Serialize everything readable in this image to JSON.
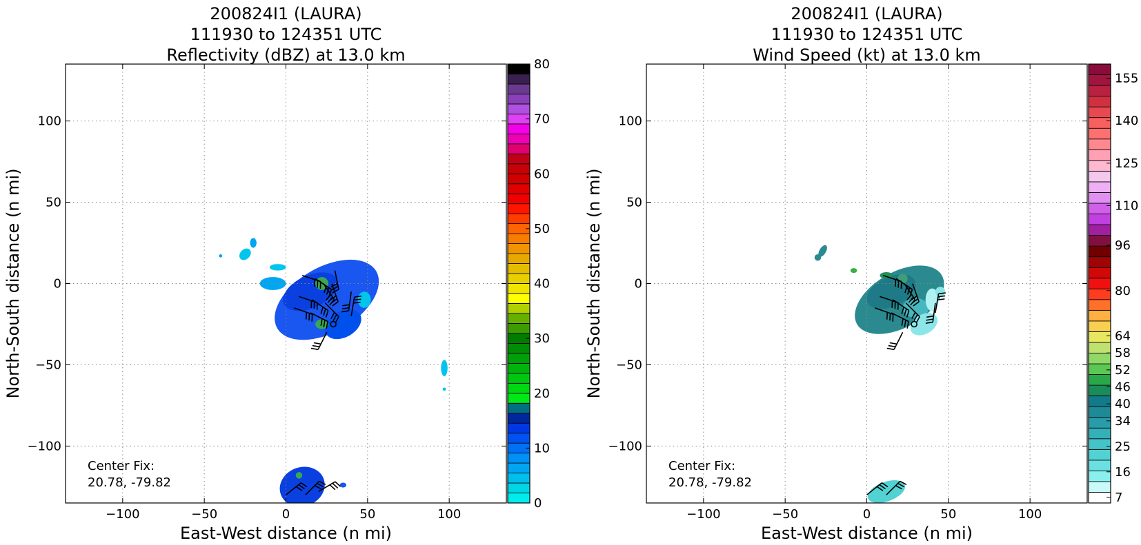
{
  "chart_data": [
    {
      "type": "heatmap",
      "title_lines": [
        "200824I1 (LAURA)",
        "111930 to 124351 UTC",
        "Reflectivity (dBZ) at 13.0 km"
      ],
      "xlabel": "East-West distance (n mi)",
      "ylabel": "North-South distance (n mi)",
      "xlim": [
        -135,
        135
      ],
      "ylim": [
        -135,
        135
      ],
      "xticks": [
        -100,
        -50,
        0,
        50,
        100
      ],
      "yticks": [
        -100,
        -50,
        0,
        50,
        100
      ],
      "xtick_labels": [
        "−100",
        "−50",
        "0",
        "50",
        "100"
      ],
      "ytick_labels": [
        "−100",
        "−50",
        "0",
        "50",
        "100"
      ],
      "grid": true,
      "annotation": [
        "Center Fix:",
        "20.78, -79.82"
      ],
      "colorbar": {
        "min": 0,
        "max": 80,
        "tick_values": [
          0,
          10,
          20,
          30,
          40,
          50,
          60,
          70,
          80
        ],
        "tick_labels": [
          "0",
          "10",
          "20",
          "30",
          "40",
          "50",
          "60",
          "70",
          "80"
        ],
        "colors": [
          "#00ecec",
          "#00d6e6",
          "#00bfee",
          "#00a6f2",
          "#0090f6",
          "#0071f6",
          "#0053f2",
          "#0038e6",
          "#00279e",
          "#007080",
          "#00e818",
          "#00d814",
          "#00c810",
          "#00b40c",
          "#00a008",
          "#008c04",
          "#007c00",
          "#3c9c00",
          "#68b000",
          "#b0d000",
          "#ffff00",
          "#f0e400",
          "#e8d000",
          "#e4bc00",
          "#e8a800",
          "#f09400",
          "#f87c00",
          "#ff6400",
          "#ff3c00",
          "#ff1400",
          "#f00000",
          "#e00000",
          "#d00000",
          "#c80008",
          "#c00018",
          "#e00070",
          "#f000b4",
          "#f400e8",
          "#e040f4",
          "#b050e0",
          "#8a40b8",
          "#6a3a90",
          "#3a2050",
          "#000000"
        ]
      },
      "blobs": [
        {
          "x": 25,
          "y": -10,
          "rx": 35,
          "ry": 20,
          "rot": -30,
          "color": "#1a56f0"
        },
        {
          "x": 15,
          "y": -5,
          "rx": 18,
          "ry": 10,
          "rot": -25,
          "color": "#0a40e0"
        },
        {
          "x": 35,
          "y": -25,
          "rx": 12,
          "ry": 8,
          "rot": -30,
          "color": "#0050ee"
        },
        {
          "x": -8,
          "y": 0,
          "rx": 8,
          "ry": 4,
          "rot": 0,
          "color": "#00a6f2"
        },
        {
          "x": -5,
          "y": 10,
          "rx": 5,
          "ry": 2,
          "rot": 0,
          "color": "#00c6ee"
        },
        {
          "x": 45,
          "y": -5,
          "rx": 5,
          "ry": 10,
          "rot": 0,
          "color": "#1a56f0"
        },
        {
          "x": 48,
          "y": -10,
          "rx": 4,
          "ry": 5,
          "rot": 0,
          "color": "#00c6ee"
        },
        {
          "x": 22,
          "y": 0,
          "rx": 4,
          "ry": 4,
          "rot": 0,
          "color": "#38a850"
        },
        {
          "x": 22,
          "y": -25,
          "rx": 4,
          "ry": 3,
          "rot": 0,
          "color": "#38a850"
        },
        {
          "x": -25,
          "y": 18,
          "rx": 3,
          "ry": 4,
          "rot": 45,
          "color": "#00c6ee"
        },
        {
          "x": -20,
          "y": 25,
          "rx": 2,
          "ry": 3,
          "rot": 0,
          "color": "#00a6f2"
        },
        {
          "x": -40,
          "y": 17,
          "rx": 1,
          "ry": 1,
          "rot": 0,
          "color": "#00a6f2"
        },
        {
          "x": 97,
          "y": -52,
          "rx": 2,
          "ry": 5,
          "rot": 0,
          "color": "#00c6ee"
        },
        {
          "x": 97,
          "y": -65,
          "rx": 1,
          "ry": 1,
          "rot": 0,
          "color": "#00c6ee"
        },
        {
          "x": 10,
          "y": -125,
          "rx": 14,
          "ry": 12,
          "rot": -20,
          "color": "#0a40e0"
        },
        {
          "x": 35,
          "y": -124,
          "rx": 2,
          "ry": 1.5,
          "rot": 0,
          "color": "#1a56f0"
        },
        {
          "x": 8,
          "y": -118,
          "rx": 2,
          "ry": 2,
          "rot": 0,
          "color": "#38a850"
        }
      ],
      "barbs": [
        {
          "x": 10,
          "y": 5,
          "u": 15,
          "v": -5
        },
        {
          "x": 18,
          "y": 3,
          "u": 12,
          "v": -8
        },
        {
          "x": 23,
          "y": 0,
          "u": 8,
          "v": -12
        },
        {
          "x": 28,
          "y": 0,
          "u": 5,
          "v": -14
        },
        {
          "x": 30,
          "y": 8,
          "u": 3,
          "v": -15
        },
        {
          "x": 8,
          "y": -8,
          "u": 15,
          "v": -5
        },
        {
          "x": 16,
          "y": -10,
          "u": 12,
          "v": -8
        },
        {
          "x": 24,
          "y": -12,
          "u": 10,
          "v": -10
        },
        {
          "x": 40,
          "y": -5,
          "u": -2,
          "v": -15
        },
        {
          "x": 40,
          "y": -20,
          "u": 2,
          "v": 12
        },
        {
          "x": 5,
          "y": -15,
          "u": 14,
          "v": -5
        },
        {
          "x": 15,
          "y": -18,
          "u": 12,
          "v": -6
        },
        {
          "x": 25,
          "y": -30,
          "u": -5,
          "v": -10
        },
        {
          "x": 0,
          "y": -130,
          "u": 10,
          "v": 8
        },
        {
          "x": 12,
          "y": -130,
          "u": 8,
          "v": 8
        },
        {
          "x": 20,
          "y": -128,
          "u": 10,
          "v": 6
        }
      ],
      "center": {
        "x": 29,
        "y": -25
      }
    },
    {
      "type": "heatmap",
      "title_lines": [
        "200824I1 (LAURA)",
        "111930 to 124351 UTC",
        "Wind Speed (kt) at 13.0 km"
      ],
      "xlabel": "East-West distance (n mi)",
      "ylabel": "North-South distance (n mi)",
      "xlim": [
        -135,
        135
      ],
      "ylim": [
        -135,
        135
      ],
      "xticks": [
        -100,
        -50,
        0,
        50,
        100
      ],
      "yticks": [
        -100,
        -50,
        0,
        50,
        100
      ],
      "xtick_labels": [
        "−100",
        "−50",
        "0",
        "50",
        "100"
      ],
      "ytick_labels": [
        "−100",
        "−50",
        "0",
        "50",
        "100"
      ],
      "grid": true,
      "annotation": [
        "Center Fix:",
        "20.78, -79.82"
      ],
      "colorbar": {
        "min": 5,
        "max": 160,
        "tick_values": [
          7,
          16,
          25,
          34,
          40,
          46,
          52,
          58,
          64,
          80,
          96,
          110,
          125,
          140,
          155
        ],
        "tick_labels": [
          "7",
          "16",
          "25",
          "34",
          "40",
          "46",
          "52",
          "58",
          "64",
          "80",
          "96",
          "110",
          "125",
          "140",
          "155"
        ],
        "colors": [
          "#ffffff",
          "#c8fafa",
          "#8af0ee",
          "#6ae0e0",
          "#52d2d2",
          "#44c4c8",
          "#34b0b8",
          "#289ca8",
          "#1e8a98",
          "#127a88",
          "#1a8c5a",
          "#28a848",
          "#5cc854",
          "#90d868",
          "#c0e070",
          "#e8e860",
          "#f8d050",
          "#ffb040",
          "#ff7028",
          "#ff3c20",
          "#f01010",
          "#d00808",
          "#a00404",
          "#700000",
          "#801040",
          "#a020a0",
          "#c040e0",
          "#d060ea",
          "#e090f0",
          "#eeb0f4",
          "#f4c8ec",
          "#ffb8d0",
          "#ffa0b4",
          "#ff8890",
          "#ff7070",
          "#f86060",
          "#e84850",
          "#d03040",
          "#b82240",
          "#a01440",
          "#8a0c3a"
        ]
      },
      "blobs": [
        {
          "x": 20,
          "y": -10,
          "rx": 30,
          "ry": 17,
          "rot": -30,
          "color": "#2a8a90"
        },
        {
          "x": 15,
          "y": -5,
          "rx": 16,
          "ry": 9,
          "rot": -25,
          "color": "#1e7a86"
        },
        {
          "x": 30,
          "y": -15,
          "rx": 8,
          "ry": 6,
          "rot": 0,
          "color": "#48b8c0"
        },
        {
          "x": 35,
          "y": -25,
          "rx": 9,
          "ry": 6,
          "rot": -30,
          "color": "#8ce6e8"
        },
        {
          "x": 40,
          "y": -10,
          "rx": 4,
          "ry": 7,
          "rot": 0,
          "color": "#b0f2f2"
        },
        {
          "x": 45,
          "y": -5,
          "rx": 3,
          "ry": 3,
          "rot": 0,
          "color": "#8ae6e6"
        },
        {
          "x": 12,
          "y": 5,
          "rx": 4,
          "ry": 2,
          "rot": 0,
          "color": "#238e5c"
        },
        {
          "x": -8,
          "y": 8,
          "rx": 2,
          "ry": 1.5,
          "rot": 0,
          "color": "#36b040"
        },
        {
          "x": 22,
          "y": 3,
          "rx": 3,
          "ry": 3,
          "rot": 0,
          "color": "#3e9e7a"
        },
        {
          "x": -27,
          "y": 20,
          "rx": 2,
          "ry": 4,
          "rot": 30,
          "color": "#2a8a90"
        },
        {
          "x": -30,
          "y": 16,
          "rx": 2,
          "ry": 2,
          "rot": 0,
          "color": "#2a8a90"
        },
        {
          "x": 12,
          "y": -128,
          "rx": 12,
          "ry": 6,
          "rot": -20,
          "color": "#52d2d2"
        }
      ],
      "barbs": [
        {
          "x": 10,
          "y": 5,
          "u": 15,
          "v": -5
        },
        {
          "x": 18,
          "y": 3,
          "u": 12,
          "v": -8
        },
        {
          "x": 23,
          "y": 0,
          "u": 8,
          "v": -12
        },
        {
          "x": 28,
          "y": 0,
          "u": 5,
          "v": -14
        },
        {
          "x": 8,
          "y": -8,
          "u": 15,
          "v": -5
        },
        {
          "x": 16,
          "y": -10,
          "u": 12,
          "v": -8
        },
        {
          "x": 24,
          "y": -12,
          "u": 10,
          "v": -10
        },
        {
          "x": 42,
          "y": -12,
          "u": -2,
          "v": -15
        },
        {
          "x": 42,
          "y": -18,
          "u": 2,
          "v": 12
        },
        {
          "x": 5,
          "y": -15,
          "u": 14,
          "v": -5
        },
        {
          "x": 15,
          "y": -18,
          "u": 12,
          "v": -6
        },
        {
          "x": 22,
          "y": -30,
          "u": -5,
          "v": -10
        },
        {
          "x": 0,
          "y": -130,
          "u": 10,
          "v": 8
        },
        {
          "x": 12,
          "y": -130,
          "u": 8,
          "v": 8
        }
      ],
      "center": {
        "x": 29,
        "y": -25
      }
    }
  ]
}
